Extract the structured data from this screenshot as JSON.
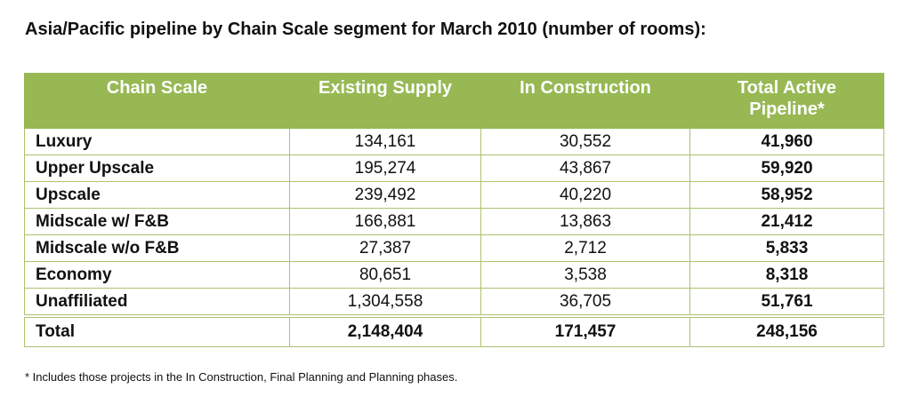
{
  "title": "Asia/Pacific pipeline by Chain Scale segment for March 2010 (number of rooms):",
  "table": {
    "header": [
      "Chain Scale",
      "Existing Supply",
      "In Construction",
      "Total Active Pipeline*"
    ],
    "rows": [
      [
        "Luxury",
        "134,161",
        "30,552",
        "41,960"
      ],
      [
        "Upper Upscale",
        "195,274",
        "43,867",
        "59,920"
      ],
      [
        "Upscale",
        "239,492",
        "40,220",
        "58,952"
      ],
      [
        "Midscale w/ F&B",
        "166,881",
        "13,863",
        "21,412"
      ],
      [
        "Midscale w/o F&B",
        "27,387",
        "2,712",
        "5,833"
      ],
      [
        "Economy",
        "80,651",
        "3,538",
        "8,318"
      ],
      [
        "Unaffiliated",
        "1,304,558",
        "36,705",
        "51,761"
      ]
    ],
    "total": [
      "Total",
      "2,148,404",
      "171,457",
      "248,156"
    ]
  },
  "footnote": "* Includes those projects in the In Construction, Final Planning and Planning phases."
}
